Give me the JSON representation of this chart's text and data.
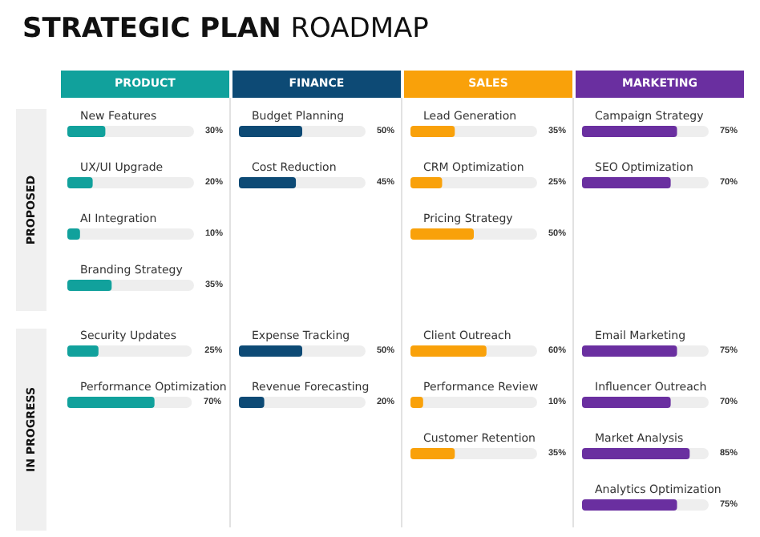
{
  "chart_data": [
    {
      "type": "other",
      "title": "STRATEGIC PLAN ROADMAP",
      "annotations": [
        "PRODUCT",
        "FINANCE",
        "SALES",
        "MARKETING",
        "PROPOSED",
        "IN PROGRESS"
      ]
    },
    {
      "type": "bar",
      "orientation": "horizontal",
      "color": "#11a19c",
      "categories": [
        "New Features",
        "UX/UI Upgrade",
        "AI Integration",
        "Branding Strategy"
      ],
      "values": [
        30,
        20,
        10,
        35
      ],
      "value_labels": [
        "30%",
        "20%",
        "10%",
        "35%"
      ],
      "xlim": [
        0,
        100
      ],
      "tick_labels": "y"
    },
    {
      "type": "bar",
      "orientation": "horizontal",
      "color": "#0d4a75",
      "categories": [
        "Budget Planning",
        "Cost Reduction"
      ],
      "values": [
        50,
        45
      ],
      "value_labels": [
        "50%",
        "45%"
      ],
      "xlim": [
        0,
        100
      ],
      "tick_labels": "y"
    },
    {
      "type": "bar",
      "orientation": "horizontal",
      "color": "#f9a10a",
      "categories": [
        "Lead Generation",
        "CRM Optimization",
        "Pricing Strategy"
      ],
      "values": [
        35,
        25,
        50
      ],
      "value_labels": [
        "35%",
        "25%",
        "50%"
      ],
      "xlim": [
        0,
        100
      ],
      "tick_labels": "y"
    },
    {
      "type": "bar",
      "orientation": "horizontal",
      "color": "#6a2fa0",
      "categories": [
        "Campaign Strategy",
        "SEO Optimization"
      ],
      "values": [
        75,
        70
      ],
      "value_labels": [
        "75%",
        "70%"
      ],
      "xlim": [
        0,
        100
      ],
      "tick_labels": "y"
    },
    {
      "type": "bar",
      "orientation": "horizontal",
      "color": "#11a19c",
      "categories": [
        "Security Updates",
        "Performance Optimization"
      ],
      "values": [
        25,
        70
      ],
      "value_labels": [
        "25%",
        "70%"
      ],
      "xlim": [
        0,
        100
      ],
      "tick_labels": "y"
    },
    {
      "type": "bar",
      "orientation": "horizontal",
      "color": "#0d4a75",
      "categories": [
        "Expense Tracking",
        "Revenue Forecasting"
      ],
      "values": [
        50,
        20
      ],
      "value_labels": [
        "50%",
        "20%"
      ],
      "xlim": [
        0,
        100
      ],
      "tick_labels": "y"
    },
    {
      "type": "bar",
      "orientation": "horizontal",
      "color": "#f9a10a",
      "categories": [
        "Client Outreach",
        "Performance Review",
        "Customer Retention"
      ],
      "values": [
        60,
        10,
        35
      ],
      "value_labels": [
        "60%",
        "10%",
        "35%"
      ],
      "xlim": [
        0,
        100
      ],
      "tick_labels": "y"
    },
    {
      "type": "bar",
      "orientation": "horizontal",
      "color": "#6a2fa0",
      "categories": [
        "Email Marketing",
        "Influencer Outreach",
        "Market Analysis",
        "Analytics Optimization"
      ],
      "values": [
        75,
        70,
        85,
        75
      ],
      "value_labels": [
        "75%",
        "70%",
        "85%",
        "75%"
      ],
      "xlim": [
        0,
        100
      ],
      "tick_labels": "y"
    }
  ]
}
